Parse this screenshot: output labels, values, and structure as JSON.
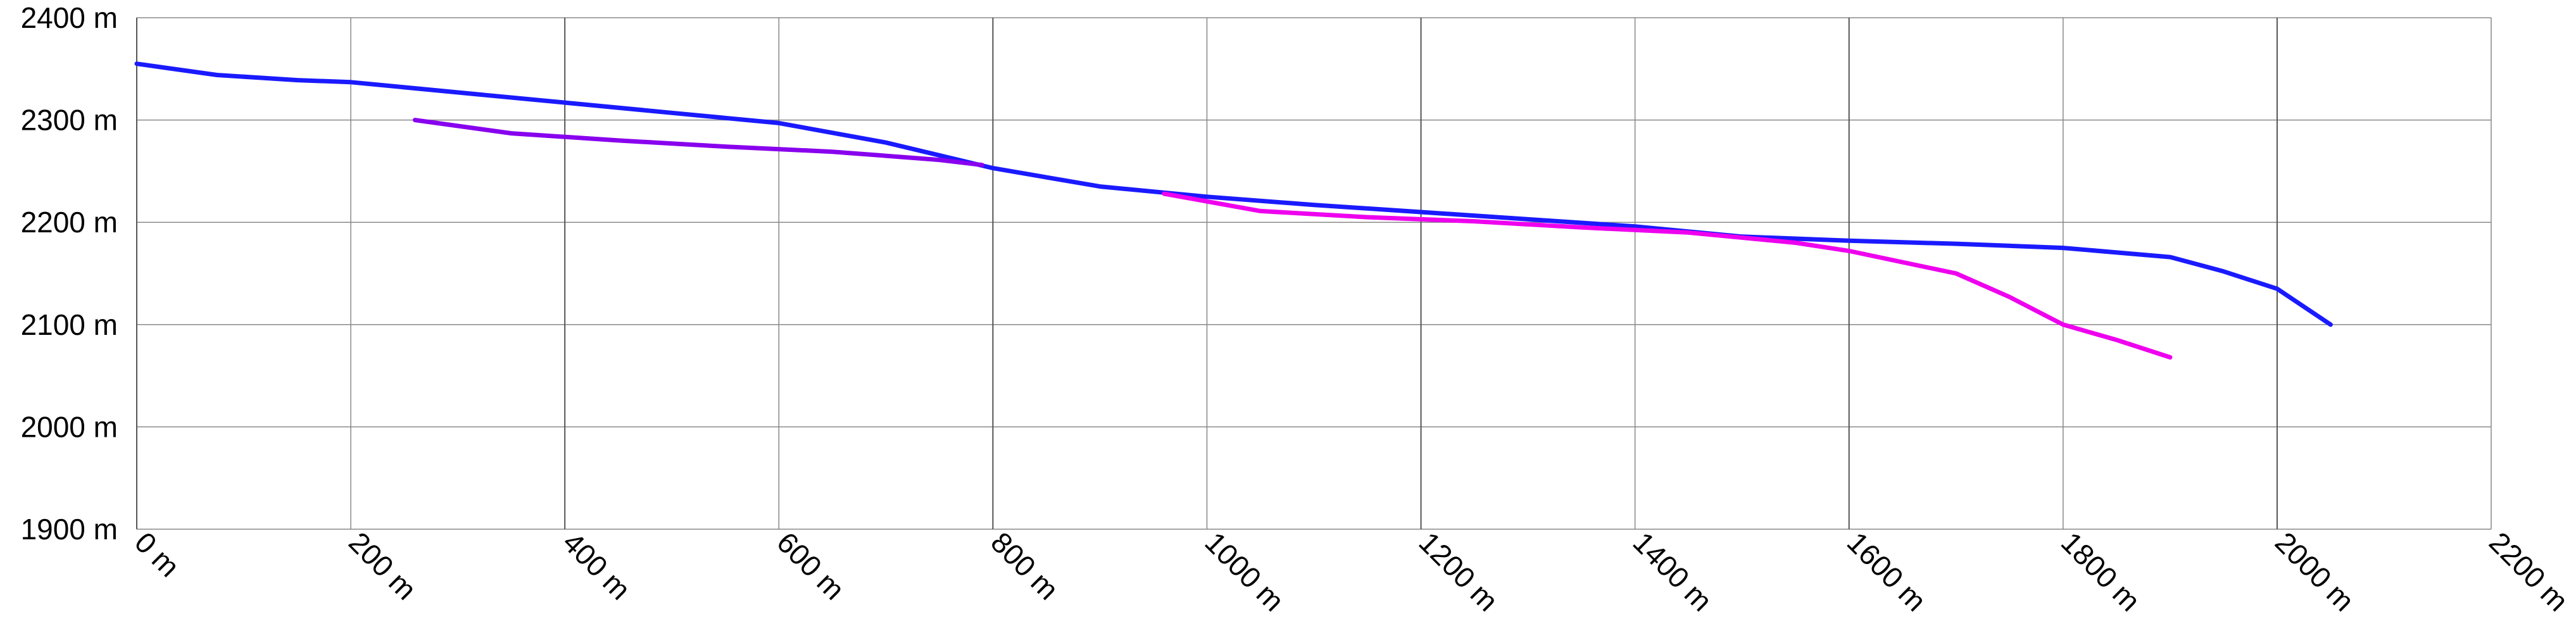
{
  "chart_data": {
    "type": "line",
    "title": "",
    "xlabel": "",
    "ylabel": "",
    "xlim": [
      0,
      2200
    ],
    "ylim": [
      1900,
      2400
    ],
    "x_ticks": [
      0,
      200,
      400,
      600,
      800,
      1000,
      1200,
      1400,
      1600,
      1800,
      2000,
      2200
    ],
    "y_ticks": [
      1900,
      2000,
      2100,
      2200,
      2300,
      2400
    ],
    "x_tick_labels": [
      "0 m",
      "200 m",
      "400 m",
      "600 m",
      "800 m",
      "1000 m",
      "1200 m",
      "1400 m",
      "1600 m",
      "1800 m",
      "2000 m",
      "2200 m"
    ],
    "y_tick_labels": [
      "1900 m",
      "2000 m",
      "2100 m",
      "2200 m",
      "2300 m",
      "2400 m"
    ],
    "grid": true,
    "legend": "none",
    "series": [
      {
        "color": "#1a1aff",
        "points": [
          [
            0,
            2355
          ],
          [
            75,
            2344
          ],
          [
            150,
            2339
          ],
          [
            200,
            2337
          ],
          [
            300,
            2327
          ],
          [
            400,
            2317
          ],
          [
            500,
            2307
          ],
          [
            600,
            2297
          ],
          [
            700,
            2278
          ],
          [
            800,
            2253
          ],
          [
            900,
            2235
          ],
          [
            1000,
            2225
          ],
          [
            1100,
            2217
          ],
          [
            1200,
            2210
          ],
          [
            1300,
            2203
          ],
          [
            1400,
            2196
          ],
          [
            1500,
            2186
          ],
          [
            1600,
            2182
          ],
          [
            1700,
            2179
          ],
          [
            1800,
            2175
          ],
          [
            1900,
            2166
          ],
          [
            1950,
            2152
          ],
          [
            2000,
            2135
          ],
          [
            2050,
            2100
          ]
        ]
      },
      {
        "color": "#8800ee",
        "points": [
          [
            260,
            2300
          ],
          [
            350,
            2287
          ],
          [
            450,
            2280
          ],
          [
            550,
            2274
          ],
          [
            650,
            2269
          ],
          [
            750,
            2261
          ],
          [
            790,
            2256
          ]
        ]
      },
      {
        "color": "#ee00ee",
        "points": [
          [
            960,
            2228
          ],
          [
            1050,
            2211
          ],
          [
            1150,
            2205
          ],
          [
            1250,
            2201
          ],
          [
            1350,
            2195
          ],
          [
            1450,
            2190
          ],
          [
            1550,
            2180
          ],
          [
            1600,
            2172
          ],
          [
            1700,
            2150
          ],
          [
            1750,
            2127
          ],
          [
            1800,
            2100
          ],
          [
            1850,
            2085
          ],
          [
            1900,
            2068
          ]
        ]
      }
    ]
  }
}
